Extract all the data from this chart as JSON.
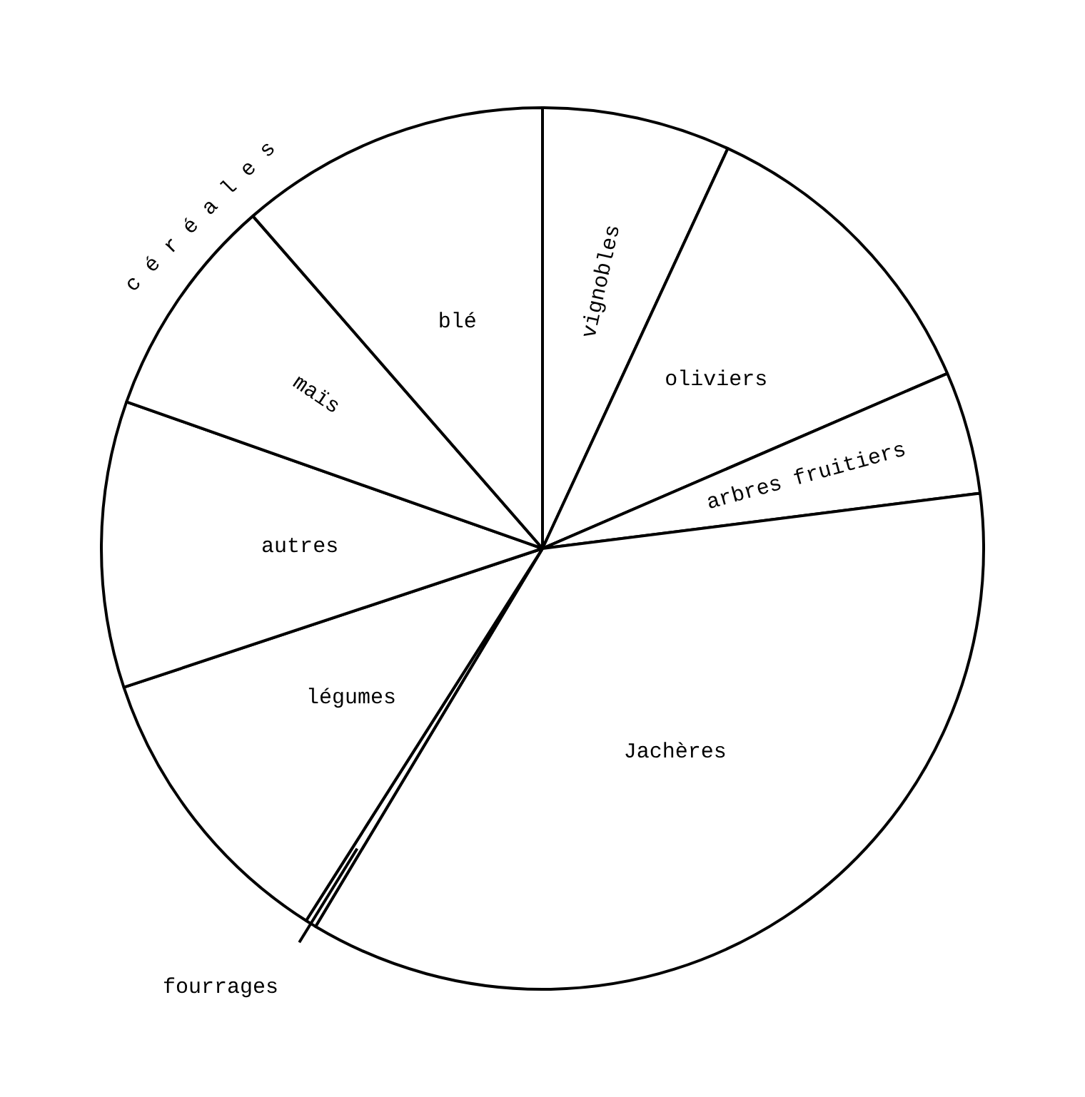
{
  "chart_data": {
    "type": "pie",
    "categories": [
      "vignobles",
      "oliviers",
      "arbres fruitiers",
      "Jachères",
      "fourrages",
      "légumes",
      "autres",
      "maïs",
      "blé"
    ],
    "values": [
      6.9,
      11.6,
      4.5,
      35.6,
      0.4,
      10.9,
      10.5,
      8.2,
      11.4
    ],
    "colors": [
      "#ffffff",
      "#ffffff",
      "#ffffff",
      "#ffffff",
      "#ffffff",
      "#ffffff",
      "#ffffff",
      "#ffffff",
      "#ffffff"
    ],
    "annotations": [
      "céréales"
    ]
  }
}
